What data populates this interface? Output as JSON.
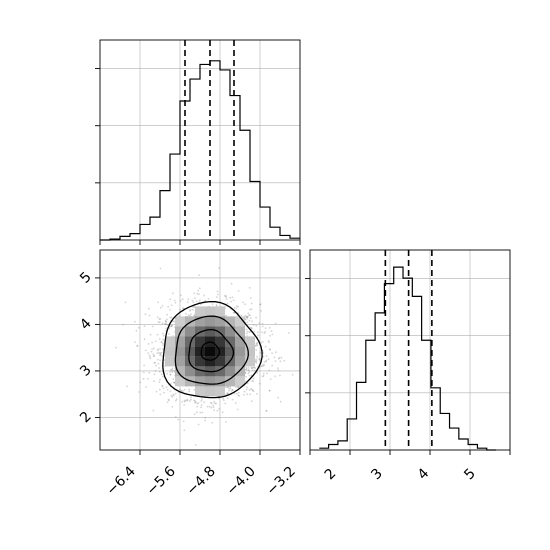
{
  "chart_data": [
    {
      "type": "histogram",
      "panel": "top-left",
      "xlim": [
        -7.2,
        -3.2
      ],
      "bin_edges": [
        -7.2,
        -7.0,
        -6.8,
        -6.6,
        -6.4,
        -6.2,
        -6.0,
        -5.8,
        -5.6,
        -5.4,
        -5.2,
        -5.0,
        -4.8,
        -4.6,
        -4.4,
        -4.2,
        -4.0,
        -3.8,
        -3.6,
        -3.4,
        -3.2
      ],
      "counts": [
        0,
        0.005,
        0.02,
        0.035,
        0.085,
        0.125,
        0.27,
        0.47,
        0.76,
        0.88,
        0.96,
        0.98,
        0.93,
        0.79,
        0.6,
        0.32,
        0.18,
        0.07,
        0.025,
        0.01
      ],
      "quantiles": [
        -5.5,
        -5.0,
        -4.52
      ],
      "grid": true
    },
    {
      "type": "scatter-density",
      "panel": "bottom-left",
      "xlim": [
        -7.2,
        -3.2
      ],
      "ylim": [
        1.3,
        5.6
      ],
      "center": [
        -5.0,
        3.42
      ],
      "xticks": [
        "−6.4",
        "−5.6",
        "−4.8",
        "−4.0",
        "−3.2"
      ],
      "yticks": [
        "2",
        "3",
        "4",
        "5"
      ],
      "grid": true
    },
    {
      "type": "histogram",
      "panel": "bottom-right",
      "xlim": [
        1.3,
        5.6
      ],
      "bin_edges": [
        1.5,
        1.7,
        1.9,
        2.1,
        2.3,
        2.5,
        2.7,
        2.9,
        3.1,
        3.3,
        3.5,
        3.7,
        3.9,
        4.1,
        4.3,
        4.5,
        4.7,
        4.9,
        5.1,
        5.3
      ],
      "counts": [
        0.01,
        0.03,
        0.05,
        0.17,
        0.37,
        0.6,
        0.75,
        0.91,
        1.0,
        0.94,
        0.84,
        0.6,
        0.34,
        0.2,
        0.12,
        0.06,
        0.03,
        0.01,
        0.0
      ],
      "quantiles": [
        2.92,
        3.42,
        3.92
      ],
      "xticks": [
        "2",
        "3",
        "4",
        "5"
      ],
      "grid": true
    }
  ]
}
